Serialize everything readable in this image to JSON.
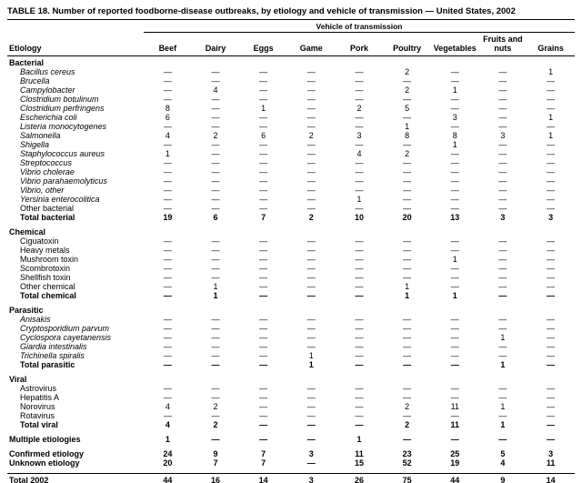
{
  "title": "TABLE 18. Number of reported foodborne-disease outbreaks, by etiology and vehicle of transmission — United States, 2002",
  "table": {
    "spanner": "Vehicle of transmission",
    "row_header": "Etiology",
    "columns": [
      "Beef",
      "Dairy",
      "Eggs",
      "Game",
      "Pork",
      "Poultry",
      "Vegetables",
      "Fruits and nuts",
      "Grains"
    ],
    "dash": "—",
    "rows": [
      {
        "label": "Bacterial",
        "type": "section"
      },
      {
        "label": "Bacillus cereus",
        "type": "item_italic",
        "values": [
          "—",
          "—",
          "—",
          "—",
          "—",
          "2",
          "—",
          "—",
          "1"
        ]
      },
      {
        "label": "Brucella",
        "type": "item_italic",
        "values": [
          "—",
          "—",
          "—",
          "—",
          "—",
          "—",
          "—",
          "—",
          "—"
        ]
      },
      {
        "label": "Campylobacter",
        "type": "item_italic",
        "values": [
          "—",
          "4",
          "—",
          "—",
          "—",
          "2",
          "1",
          "—",
          "—"
        ]
      },
      {
        "label": "Clostridium botulinum",
        "type": "item_italic",
        "values": [
          "—",
          "—",
          "—",
          "—",
          "—",
          "—",
          "—",
          "—",
          "—"
        ]
      },
      {
        "label": "Clostridium perfringens",
        "type": "item_italic",
        "values": [
          "8",
          "—",
          "1",
          "—",
          "2",
          "5",
          "—",
          "—",
          "—"
        ]
      },
      {
        "label": "Escherichia coli",
        "type": "item_italic",
        "values": [
          "6",
          "—",
          "—",
          "—",
          "—",
          "—",
          "3",
          "—",
          "1"
        ]
      },
      {
        "label": "Listeria monocytogenes",
        "type": "item_italic",
        "values": [
          "—",
          "—",
          "—",
          "—",
          "—",
          "1",
          "—",
          "—",
          "—"
        ]
      },
      {
        "label": "Salmonella",
        "type": "item_italic",
        "values": [
          "4",
          "2",
          "6",
          "2",
          "3",
          "8",
          "8",
          "3",
          "1"
        ]
      },
      {
        "label": "Shigella",
        "type": "item_italic",
        "values": [
          "—",
          "—",
          "—",
          "—",
          "—",
          "—",
          "1",
          "—",
          "—"
        ]
      },
      {
        "label": "Staphylococcus aureus",
        "type": "item_italic",
        "values": [
          "1",
          "—",
          "—",
          "—",
          "4",
          "2",
          "—",
          "—",
          "—"
        ]
      },
      {
        "label": "Streptococcus",
        "type": "item_italic",
        "values": [
          "—",
          "—",
          "—",
          "—",
          "—",
          "—",
          "—",
          "—",
          "—"
        ]
      },
      {
        "label": "Vibrio cholerae",
        "type": "item_italic",
        "values": [
          "—",
          "—",
          "—",
          "—",
          "—",
          "—",
          "—",
          "—",
          "—"
        ]
      },
      {
        "label": "Vibrio parahaemolyticus",
        "type": "item_italic",
        "values": [
          "—",
          "—",
          "—",
          "—",
          "—",
          "—",
          "—",
          "—",
          "—"
        ]
      },
      {
        "label": "Vibrio, other",
        "type": "item_italic",
        "values": [
          "—",
          "—",
          "—",
          "—",
          "—",
          "—",
          "—",
          "—",
          "—"
        ]
      },
      {
        "label": "Yersinia enterocolitica",
        "type": "item_italic",
        "values": [
          "—",
          "—",
          "—",
          "—",
          "1",
          "—",
          "—",
          "—",
          "—"
        ]
      },
      {
        "label": "Other bacterial",
        "type": "item",
        "values": [
          "—",
          "—",
          "—",
          "—",
          "—",
          "—",
          "—",
          "—",
          "—"
        ]
      },
      {
        "label": "Total bacterial",
        "type": "total",
        "values": [
          "19",
          "6",
          "7",
          "2",
          "10",
          "20",
          "13",
          "3",
          "3"
        ]
      },
      {
        "label": "Chemical",
        "type": "section",
        "gap": true
      },
      {
        "label": "Ciguatoxin",
        "type": "item",
        "values": [
          "—",
          "—",
          "—",
          "—",
          "—",
          "—",
          "—",
          "—",
          "—"
        ]
      },
      {
        "label": "Heavy metals",
        "type": "item",
        "values": [
          "—",
          "—",
          "—",
          "—",
          "—",
          "—",
          "—",
          "—",
          "—"
        ]
      },
      {
        "label": "Mushroom toxin",
        "type": "item",
        "values": [
          "—",
          "—",
          "—",
          "—",
          "—",
          "—",
          "1",
          "—",
          "—"
        ]
      },
      {
        "label": "Scombrotoxin",
        "type": "item",
        "values": [
          "—",
          "—",
          "—",
          "—",
          "—",
          "—",
          "—",
          "—",
          "—"
        ]
      },
      {
        "label": "Shellfish toxin",
        "type": "item",
        "values": [
          "—",
          "—",
          "—",
          "—",
          "—",
          "—",
          "—",
          "—",
          "—"
        ]
      },
      {
        "label": "Other chemical",
        "type": "item",
        "values": [
          "—",
          "1",
          "—",
          "—",
          "—",
          "1",
          "—",
          "—",
          "—"
        ]
      },
      {
        "label": "Total chemical",
        "type": "total",
        "values": [
          "—",
          "1",
          "—",
          "—",
          "—",
          "1",
          "1",
          "—",
          "—"
        ]
      },
      {
        "label": "Parasitic",
        "type": "section",
        "gap": true
      },
      {
        "label": "Anisakis",
        "type": "item_italic",
        "values": [
          "—",
          "—",
          "—",
          "—",
          "—",
          "—",
          "—",
          "—",
          "—"
        ]
      },
      {
        "label": "Cryptosporidium parvum",
        "type": "item_italic",
        "values": [
          "—",
          "—",
          "—",
          "—",
          "—",
          "—",
          "—",
          "—",
          "—"
        ]
      },
      {
        "label": "Cyclospora cayetanensis",
        "type": "item_italic",
        "values": [
          "—",
          "—",
          "—",
          "—",
          "—",
          "—",
          "—",
          "1",
          "—"
        ]
      },
      {
        "label": "Giardia intestinalis",
        "type": "item_italic",
        "values": [
          "—",
          "—",
          "—",
          "—",
          "—",
          "—",
          "—",
          "—",
          "—"
        ]
      },
      {
        "label": "Trichinella spiralis",
        "type": "item_italic",
        "values": [
          "—",
          "—",
          "—",
          "1",
          "—",
          "—",
          "—",
          "—",
          "—"
        ]
      },
      {
        "label": "Total parasitic",
        "type": "total",
        "values": [
          "—",
          "—",
          "—",
          "1",
          "—",
          "—",
          "—",
          "1",
          "—"
        ]
      },
      {
        "label": "Viral",
        "type": "section",
        "gap": true
      },
      {
        "label": "Astrovirus",
        "type": "item",
        "values": [
          "—",
          "—",
          "—",
          "—",
          "—",
          "—",
          "—",
          "—",
          "—"
        ]
      },
      {
        "label": "Hepatitis A",
        "type": "item",
        "values": [
          "—",
          "—",
          "—",
          "—",
          "—",
          "—",
          "—",
          "—",
          "—"
        ]
      },
      {
        "label": "Norovirus",
        "type": "item",
        "values": [
          "4",
          "2",
          "—",
          "—",
          "—",
          "2",
          "11",
          "1",
          "—"
        ]
      },
      {
        "label": "Rotavirus",
        "type": "item",
        "values": [
          "—",
          "—",
          "—",
          "—",
          "—",
          "—",
          "—",
          "—",
          "—"
        ]
      },
      {
        "label": "Total viral",
        "type": "total",
        "values": [
          "4",
          "2",
          "—",
          "—",
          "—",
          "2",
          "11",
          "1",
          "—"
        ]
      },
      {
        "label": "Multiple etiologies",
        "type": "standalone",
        "gap": true,
        "values": [
          "1",
          "—",
          "—",
          "—",
          "1",
          "—",
          "—",
          "—",
          "—"
        ]
      },
      {
        "label": "Confirmed etiology",
        "type": "standalone",
        "gap": true,
        "values": [
          "24",
          "9",
          "7",
          "3",
          "11",
          "23",
          "25",
          "5",
          "3"
        ]
      },
      {
        "label": "Unknown etiology",
        "type": "standalone",
        "gap_after": true,
        "values": [
          "20",
          "7",
          "7",
          "—",
          "15",
          "52",
          "19",
          "4",
          "11"
        ]
      },
      {
        "label": "Total 2002",
        "type": "standalone",
        "rule_above": true,
        "values": [
          "44",
          "16",
          "14",
          "3",
          "26",
          "75",
          "44",
          "9",
          "14"
        ]
      }
    ]
  }
}
